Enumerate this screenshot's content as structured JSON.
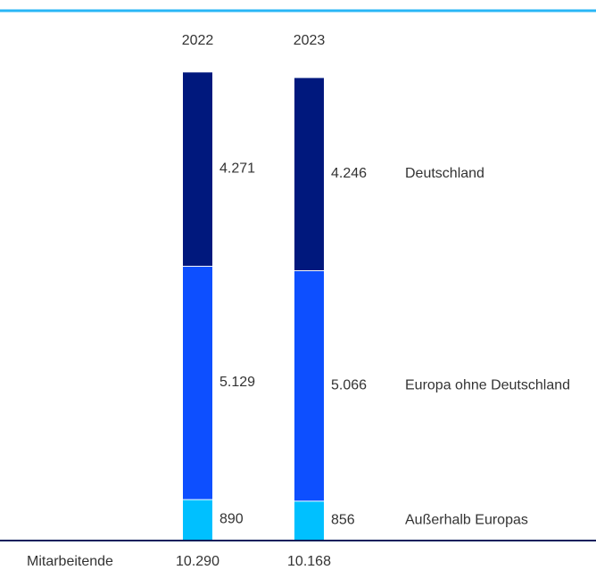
{
  "chart_data": {
    "type": "stacked-bar",
    "categories": [
      "2022",
      "2023"
    ],
    "series": [
      {
        "name": "Außerhalb Europas",
        "color": "#00c0ff",
        "values": [
          890,
          856
        ],
        "value_labels": [
          "890",
          "856"
        ]
      },
      {
        "name": "Europa ohne Deutschland",
        "color": "#0d4fff",
        "values": [
          5129,
          5066
        ],
        "value_labels": [
          "5.129",
          "5.066"
        ]
      },
      {
        "name": "Deutschland",
        "color": "#00187d",
        "values": [
          4271,
          4246
        ],
        "value_labels": [
          "4.271",
          "4.246"
        ]
      }
    ],
    "totals": {
      "label": "Mitarbeitende",
      "values": [
        10290,
        10168
      ],
      "value_labels": [
        "10.290",
        "10.168"
      ]
    },
    "ylim": [
      0,
      11000
    ]
  }
}
